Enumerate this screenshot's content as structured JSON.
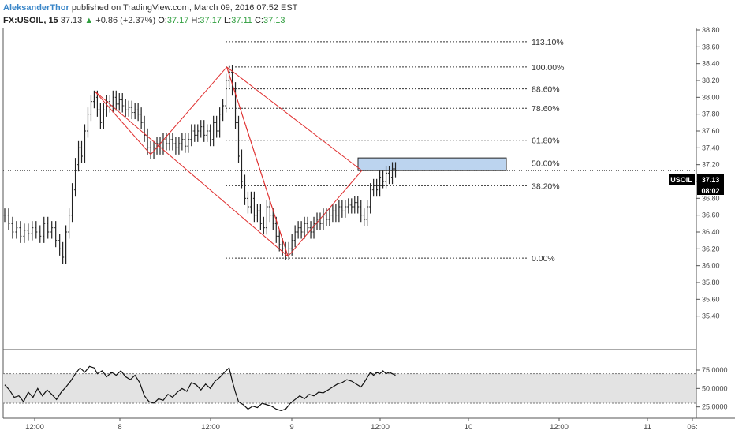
{
  "header": {
    "author": "AleksanderThor",
    "published": "published on TradingView.com, March 09, 2016 07:52 EST",
    "symbol": "FX:USOIL, 15",
    "last": "37.13",
    "change": "+0.86 (+2.37%)",
    "o_label": "O:",
    "o_val": "37.17",
    "h_label": "H:",
    "h_val": "37.17",
    "l_label": "L:",
    "l_val": "37.11",
    "c_label": "C:",
    "c_val": "37.13"
  },
  "price_tag": {
    "symbol": "USOIL",
    "price": "37.13",
    "timer": "08:02"
  },
  "chart_data": {
    "type": "candlestick",
    "ylim": [
      35.2,
      38.8
    ],
    "y_ticks": [
      "38.80",
      "38.60",
      "38.40",
      "38.20",
      "38.00",
      "37.80",
      "37.60",
      "37.40",
      "37.20",
      "37.00",
      "36.80",
      "36.60",
      "36.40",
      "36.20",
      "36.00",
      "35.80",
      "35.60",
      "35.40"
    ],
    "x_ticks": [
      "12:00",
      "8",
      "12:00",
      "9",
      "12:00",
      "10",
      "12:00",
      "11",
      "06:"
    ],
    "last_price": 37.13,
    "price_path": [
      [
        0,
        36.6
      ],
      [
        5,
        36.5
      ],
      [
        10,
        36.4
      ],
      [
        15,
        36.45
      ],
      [
        20,
        36.35
      ],
      [
        25,
        36.42
      ],
      [
        30,
        36.38
      ],
      [
        35,
        36.45
      ],
      [
        40,
        36.4
      ],
      [
        45,
        36.35
      ],
      [
        50,
        36.5
      ],
      [
        55,
        36.4
      ],
      [
        60,
        36.45
      ],
      [
        65,
        36.3
      ],
      [
        70,
        36.2
      ],
      [
        74,
        36.1
      ],
      [
        78,
        36.4
      ],
      [
        82,
        36.6
      ],
      [
        86,
        36.9
      ],
      [
        90,
        37.2
      ],
      [
        94,
        37.4
      ],
      [
        98,
        37.3
      ],
      [
        102,
        37.6
      ],
      [
        106,
        37.8
      ],
      [
        110,
        37.95
      ],
      [
        114,
        38.0
      ],
      [
        118,
        37.85
      ],
      [
        122,
        37.7
      ],
      [
        126,
        37.85
      ],
      [
        130,
        37.95
      ],
      [
        134,
        37.9
      ],
      [
        138,
        38.0
      ],
      [
        142,
        37.92
      ],
      [
        146,
        37.97
      ],
      [
        150,
        37.9
      ],
      [
        154,
        37.85
      ],
      [
        158,
        37.88
      ],
      [
        162,
        37.82
      ],
      [
        166,
        37.85
      ],
      [
        170,
        37.8
      ],
      [
        174,
        37.7
      ],
      [
        178,
        37.55
      ],
      [
        182,
        37.4
      ],
      [
        186,
        37.35
      ],
      [
        190,
        37.4
      ],
      [
        194,
        37.45
      ],
      [
        198,
        37.4
      ],
      [
        202,
        37.5
      ],
      [
        206,
        37.45
      ],
      [
        210,
        37.5
      ],
      [
        214,
        37.45
      ],
      [
        218,
        37.4
      ],
      [
        222,
        37.45
      ],
      [
        226,
        37.5
      ],
      [
        230,
        37.42
      ],
      [
        234,
        37.5
      ],
      [
        238,
        37.6
      ],
      [
        242,
        37.55
      ],
      [
        246,
        37.6
      ],
      [
        250,
        37.65
      ],
      [
        254,
        37.55
      ],
      [
        258,
        37.6
      ],
      [
        262,
        37.5
      ],
      [
        266,
        37.7
      ],
      [
        270,
        37.6
      ],
      [
        274,
        37.8
      ],
      [
        278,
        37.9
      ],
      [
        282,
        38.2
      ],
      [
        286,
        38.3
      ],
      [
        290,
        38.1
      ],
      [
        294,
        37.7
      ],
      [
        298,
        37.3
      ],
      [
        302,
        37.0
      ],
      [
        306,
        36.8
      ],
      [
        310,
        36.7
      ],
      [
        314,
        36.8
      ],
      [
        318,
        36.6
      ],
      [
        322,
        36.65
      ],
      [
        326,
        36.5
      ],
      [
        330,
        36.45
      ],
      [
        334,
        36.7
      ],
      [
        338,
        36.6
      ],
      [
        342,
        36.5
      ],
      [
        346,
        36.35
      ],
      [
        350,
        36.25
      ],
      [
        354,
        36.2
      ],
      [
        358,
        36.15
      ],
      [
        362,
        36.2
      ],
      [
        366,
        36.3
      ],
      [
        370,
        36.4
      ],
      [
        374,
        36.45
      ],
      [
        378,
        36.4
      ],
      [
        382,
        36.5
      ],
      [
        386,
        36.45
      ],
      [
        390,
        36.4
      ],
      [
        394,
        36.5
      ],
      [
        398,
        36.55
      ],
      [
        402,
        36.5
      ],
      [
        406,
        36.6
      ],
      [
        410,
        36.55
      ],
      [
        414,
        36.6
      ],
      [
        418,
        36.65
      ],
      [
        422,
        36.6
      ],
      [
        426,
        36.7
      ],
      [
        430,
        36.65
      ],
      [
        434,
        36.7
      ],
      [
        438,
        36.72
      ],
      [
        442,
        36.7
      ],
      [
        446,
        36.75
      ],
      [
        450,
        36.7
      ],
      [
        454,
        36.6
      ],
      [
        458,
        36.55
      ],
      [
        462,
        36.7
      ],
      [
        466,
        36.9
      ],
      [
        470,
        36.95
      ],
      [
        474,
        36.9
      ],
      [
        478,
        37.05
      ],
      [
        482,
        37.0
      ],
      [
        486,
        37.1
      ],
      [
        490,
        37.05
      ],
      [
        494,
        37.15
      ],
      [
        498,
        37.13
      ]
    ],
    "fib_levels": [
      {
        "label": "113.10%",
        "value": 38.66
      },
      {
        "label": "100.00%",
        "value": 38.36
      },
      {
        "label": "88.60%",
        "value": 38.1
      },
      {
        "label": "78.60%",
        "value": 37.87
      },
      {
        "label": "61.80%",
        "value": 37.49
      },
      {
        "label": "50.00%",
        "value": 37.22
      },
      {
        "label": "38.20%",
        "value": 36.95
      },
      {
        "label": "0.00%",
        "value": 36.09
      }
    ],
    "pattern_points": [
      [
        115,
        38.07
      ],
      [
        186,
        37.32
      ],
      [
        283,
        38.36
      ],
      [
        361,
        36.11
      ],
      [
        455,
        37.13
      ],
      [
        295,
        37.84
      ],
      [
        361,
        36.11
      ]
    ],
    "target_zone": {
      "y_top": 37.28,
      "y_bottom": 37.13
    },
    "oscillator": {
      "y_ticks": [
        "75.0000",
        "50.0000",
        "25.0000"
      ],
      "overbought": 70,
      "oversold": 30,
      "values": [
        [
          0,
          55
        ],
        [
          6,
          48
        ],
        [
          12,
          38
        ],
        [
          18,
          40
        ],
        [
          24,
          32
        ],
        [
          30,
          45
        ],
        [
          36,
          38
        ],
        [
          42,
          50
        ],
        [
          48,
          40
        ],
        [
          54,
          48
        ],
        [
          60,
          42
        ],
        [
          66,
          35
        ],
        [
          72,
          45
        ],
        [
          78,
          52
        ],
        [
          84,
          60
        ],
        [
          90,
          70
        ],
        [
          96,
          78
        ],
        [
          102,
          72
        ],
        [
          108,
          80
        ],
        [
          114,
          78
        ],
        [
          118,
          70
        ],
        [
          124,
          74
        ],
        [
          130,
          66
        ],
        [
          136,
          72
        ],
        [
          142,
          68
        ],
        [
          148,
          74
        ],
        [
          154,
          66
        ],
        [
          160,
          62
        ],
        [
          166,
          68
        ],
        [
          172,
          58
        ],
        [
          178,
          40
        ],
        [
          184,
          32
        ],
        [
          190,
          30
        ],
        [
          196,
          36
        ],
        [
          202,
          34
        ],
        [
          208,
          42
        ],
        [
          214,
          38
        ],
        [
          220,
          45
        ],
        [
          226,
          50
        ],
        [
          232,
          46
        ],
        [
          238,
          58
        ],
        [
          244,
          55
        ],
        [
          250,
          48
        ],
        [
          256,
          56
        ],
        [
          262,
          50
        ],
        [
          268,
          60
        ],
        [
          274,
          65
        ],
        [
          280,
          72
        ],
        [
          286,
          78
        ],
        [
          290,
          60
        ],
        [
          294,
          45
        ],
        [
          298,
          32
        ],
        [
          304,
          28
        ],
        [
          310,
          22
        ],
        [
          316,
          26
        ],
        [
          322,
          24
        ],
        [
          328,
          30
        ],
        [
          334,
          28
        ],
        [
          340,
          26
        ],
        [
          346,
          22
        ],
        [
          352,
          20
        ],
        [
          358,
          22
        ],
        [
          364,
          30
        ],
        [
          370,
          35
        ],
        [
          376,
          40
        ],
        [
          382,
          36
        ],
        [
          388,
          42
        ],
        [
          394,
          40
        ],
        [
          400,
          45
        ],
        [
          406,
          44
        ],
        [
          412,
          48
        ],
        [
          418,
          52
        ],
        [
          424,
          56
        ],
        [
          430,
          58
        ],
        [
          436,
          62
        ],
        [
          442,
          60
        ],
        [
          448,
          56
        ],
        [
          454,
          52
        ],
        [
          458,
          58
        ],
        [
          462,
          65
        ],
        [
          466,
          72
        ],
        [
          470,
          68
        ],
        [
          474,
          72
        ],
        [
          478,
          70
        ],
        [
          482,
          74
        ],
        [
          486,
          70
        ],
        [
          490,
          72
        ],
        [
          494,
          70
        ],
        [
          498,
          68
        ]
      ]
    }
  }
}
